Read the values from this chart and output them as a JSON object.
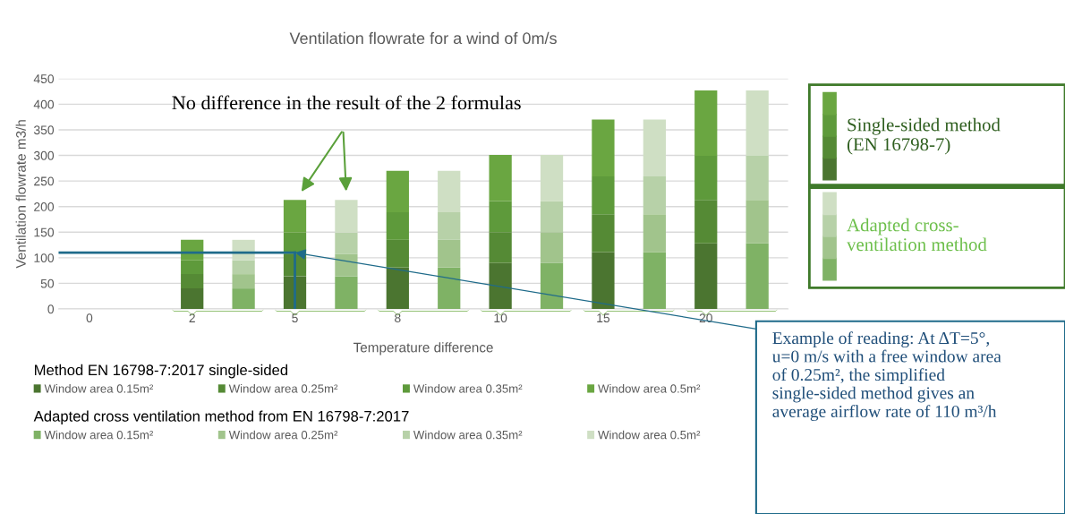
{
  "chart_data": {
    "type": "bar",
    "title": "Ventilation flowrate for a wind of 0m/s",
    "xlabel": "Temperature difference",
    "ylabel": "Ventilation flowrate m3/h",
    "categories": [
      "0",
      null,
      "2",
      null,
      "5",
      null,
      "8",
      null,
      "10",
      null,
      "15",
      null,
      "20",
      null
    ],
    "series": [
      {
        "name": "Window area 0.15m²",
        "color": "#4b7530",
        "values": [
          null,
          null,
          40,
          null,
          64,
          null,
          81,
          null,
          90,
          null,
          111,
          null,
          128,
          null
        ]
      },
      {
        "name": "Window area 0.25m²",
        "color": "#558a35",
        "values": [
          null,
          null,
          28,
          null,
          43,
          null,
          54,
          null,
          60,
          null,
          74,
          null,
          85,
          null
        ]
      },
      {
        "name": "Window area 0.35m²",
        "color": "#5e9a3b",
        "values": [
          null,
          null,
          27,
          null,
          42,
          null,
          54,
          null,
          61,
          null,
          74,
          null,
          86,
          null
        ]
      },
      {
        "name": "Window area 0.5m²",
        "color": "#6aa641",
        "values": [
          null,
          null,
          40,
          null,
          64,
          null,
          81,
          null,
          90,
          null,
          111,
          null,
          128,
          null
        ]
      },
      {
        "name": "Window area 0.15m²",
        "color": "#7fb265",
        "values": [
          null,
          null,
          null,
          40,
          null,
          64,
          null,
          81,
          null,
          90,
          null,
          111,
          null,
          128
        ]
      },
      {
        "name": "Window area 0.25m²",
        "color": "#a1c48c",
        "values": [
          null,
          null,
          null,
          28,
          null,
          43,
          null,
          54,
          null,
          60,
          null,
          74,
          null,
          85
        ]
      },
      {
        "name": "Window area 0.35m²",
        "color": "#b7d1a8",
        "values": [
          null,
          null,
          null,
          27,
          null,
          42,
          null,
          54,
          null,
          61,
          null,
          74,
          null,
          86
        ]
      },
      {
        "name": "Window area 0.5m²",
        "color": "#cfdfc4",
        "values": [
          null,
          null,
          null,
          40,
          null,
          64,
          null,
          81,
          null,
          90,
          null,
          111,
          null,
          128
        ]
      }
    ],
    "stacked": true,
    "ref_lines": [
      {
        "axis": "y",
        "value": 110,
        "color": "#1f6b8a"
      },
      {
        "axis": "x",
        "value": "5",
        "color": "#1f6b8a"
      }
    ],
    "ylim": [
      0,
      450
    ],
    "yticks": [
      0,
      50,
      100,
      150,
      200,
      250,
      300,
      350,
      400,
      450
    ],
    "grid": "y",
    "legend": "bottom",
    "annotations": [
      "Method EN 16798-7:2017 single-sided",
      "Adapted cross ventilation method from EN 16798-7:2017",
      "No difference in the result of the 2 formulas",
      "Single-sided method\n(EN 16798-7)",
      "Adapted cross-\nventilation method",
      {
        "text": "Example of reading: At ΔT=5°, u=0 m/s with a free window area of 0.25m², the simplified single-sided method gives an average airflow rate of 110 m³/h",
        "x": "5",
        "y": 110
      }
    ]
  }
}
